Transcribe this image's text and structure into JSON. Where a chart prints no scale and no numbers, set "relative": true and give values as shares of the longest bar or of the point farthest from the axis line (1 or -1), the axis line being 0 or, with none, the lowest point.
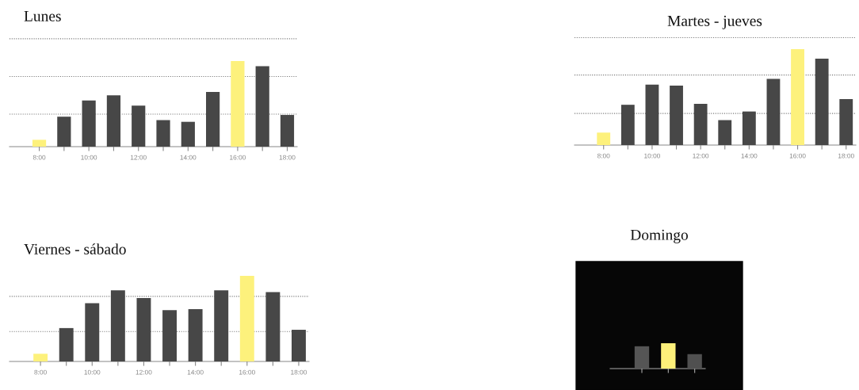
{
  "chart_data": [
    {
      "type": "bar",
      "title": "Lunes",
      "relative": true,
      "categories": [
        "8:00",
        null,
        "10:00",
        null,
        "12:00",
        null,
        "14:00",
        null,
        "16:00",
        null,
        "18:00"
      ],
      "values": [
        0.08,
        0.35,
        0.54,
        0.6,
        0.48,
        0.31,
        0.29,
        0.64,
        1,
        0.94,
        0.37
      ],
      "colors": [
        "#fdf17c",
        "#474747",
        "#474747",
        "#474747",
        "#474747",
        "#474747",
        "#474747",
        "#474747",
        "#fdf17c",
        "#474747",
        "#474747"
      ],
      "ref_lines": [
        {
          "axis": "y",
          "value": 0.38,
          "color": "#777777",
          "line_style": "dotted"
        },
        {
          "axis": "y",
          "value": 0.82,
          "color": "#777777",
          "line_style": "dotted"
        },
        {
          "axis": "y",
          "value": 1.26,
          "color": "#777777",
          "line_style": "dotted"
        }
      ]
    },
    {
      "type": "bar",
      "title": "Martes - jueves",
      "relative": true,
      "categories": [
        "8:00",
        null,
        "10:00",
        null,
        "12:00",
        null,
        "14:00",
        null,
        "16:00",
        null,
        "18:00"
      ],
      "values": [
        0.13,
        0.42,
        0.63,
        0.62,
        0.43,
        0.26,
        0.35,
        0.69,
        1,
        0.9,
        0.48
      ],
      "colors": [
        "#fdf17c",
        "#474747",
        "#474747",
        "#474747",
        "#474747",
        "#474747",
        "#474747",
        "#474747",
        "#fdf17c",
        "#474747",
        "#474747"
      ],
      "ref_lines": [
        {
          "axis": "y",
          "value": 0.33,
          "color": "#777777",
          "line_style": "dotted"
        },
        {
          "axis": "y",
          "value": 0.73,
          "color": "#777777",
          "line_style": "dotted"
        },
        {
          "axis": "y",
          "value": 1.12,
          "color": "#777777",
          "line_style": "dotted"
        }
      ]
    },
    {
      "type": "bar",
      "title": "Viernes - sábado",
      "relative": true,
      "categories": [
        "8:00",
        null,
        "10:00",
        null,
        "12:00",
        null,
        "14:00",
        null,
        "16:00",
        null,
        "18:00"
      ],
      "values": [
        0.09,
        0.39,
        0.68,
        0.83,
        0.74,
        0.6,
        0.61,
        0.83,
        1,
        0.81,
        0.37
      ],
      "colors": [
        "#fdf17c",
        "#474747",
        "#474747",
        "#474747",
        "#474747",
        "#474747",
        "#474747",
        "#474747",
        "#fdf17c",
        "#474747",
        "#474747"
      ],
      "ref_lines": [
        {
          "axis": "y",
          "value": 0.35,
          "color": "#777777",
          "line_style": "dotted"
        },
        {
          "axis": "y",
          "value": 0.76,
          "color": "#777777",
          "line_style": "dotted"
        }
      ]
    },
    {
      "type": "bar",
      "title": "Domingo",
      "relative": true,
      "categories": [
        null,
        null,
        null
      ],
      "values": [
        0.88,
        1,
        0.57
      ],
      "colors": [
        "#555555",
        "#fdf07a",
        "#505050"
      ]
    }
  ]
}
